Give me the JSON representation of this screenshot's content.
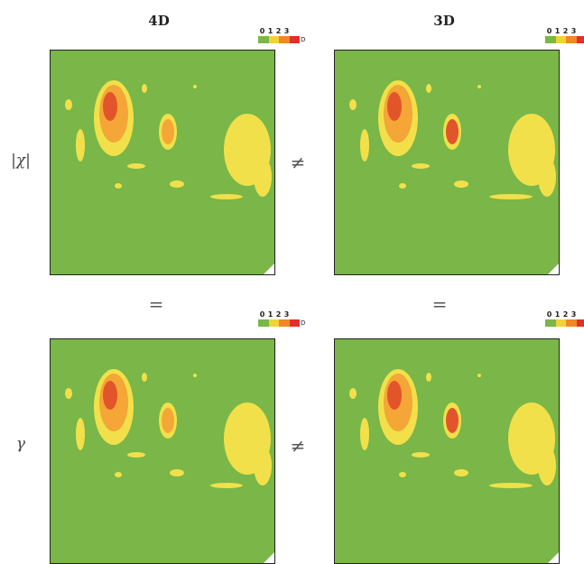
{
  "columns": [
    "4D",
    "3D"
  ],
  "rows": [
    "|χ|",
    "γ"
  ],
  "relations": {
    "horizontal_top": "≠",
    "horizontal_bottom": "≠",
    "vertical_left": "=",
    "vertical_right": "="
  },
  "legend": {
    "ticks": [
      "0",
      "1",
      "2",
      "3"
    ],
    "unit": "D",
    "colors": [
      "#7ab648",
      "#f2d23a",
      "#f0872a",
      "#e0302a"
    ]
  },
  "colors": {
    "background_field": "#7ab648",
    "low": "#f2e04a",
    "mid": "#f4a637",
    "high": "#e2552a"
  }
}
